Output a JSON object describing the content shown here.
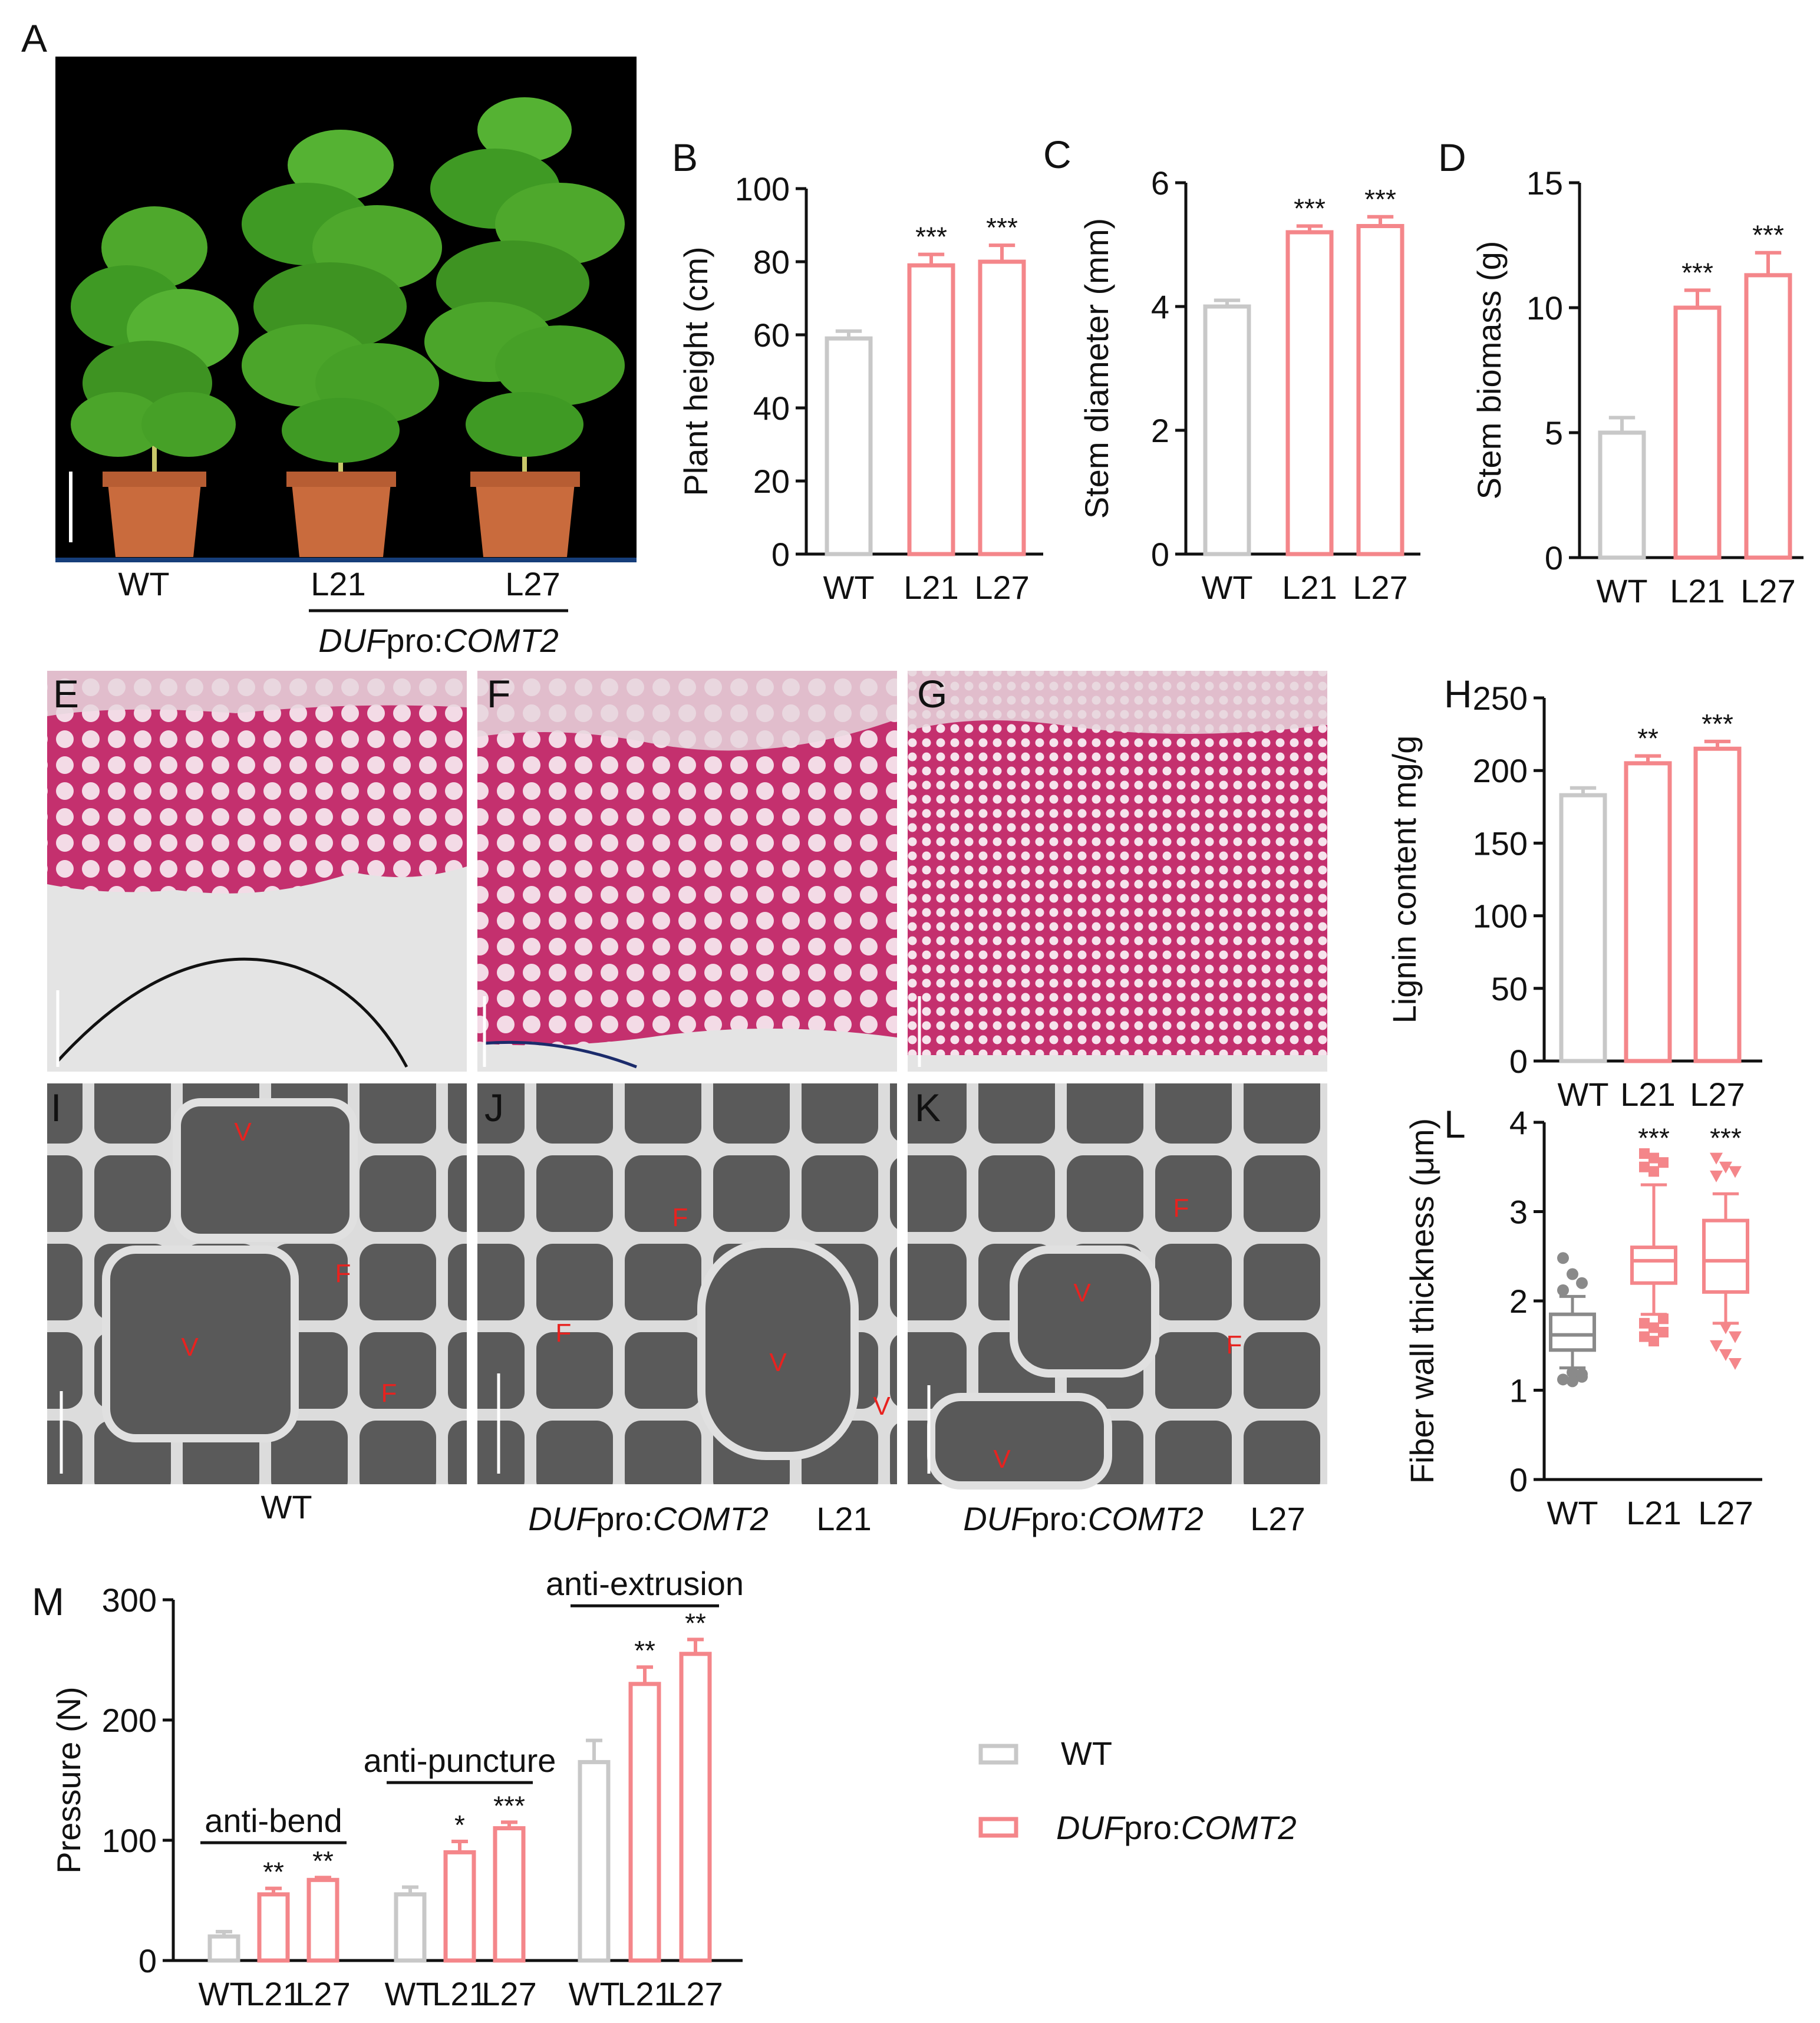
{
  "panel_letters": [
    "A",
    "B",
    "C",
    "D",
    "E",
    "F",
    "G",
    "H",
    "I",
    "J",
    "K",
    "L",
    "M"
  ],
  "colors": {
    "wt": "#c8c8c8",
    "duf": "#f4868a",
    "stain": "#c4306e",
    "sem": "#5d5d5d",
    "black": "#000000"
  },
  "panel_a": {
    "labels": [
      "WT",
      "L21",
      "L27"
    ],
    "construct_italic": "DUF",
    "construct_mid": "pro:",
    "construct_italic2": "COMT2"
  },
  "panels_ijk": {
    "captions": [
      "WT",
      "L21",
      "L27"
    ],
    "markers_i": [
      "V",
      "F",
      "V",
      "F"
    ],
    "markers_j": [
      "F",
      "F",
      "V",
      "V"
    ],
    "markers_k": [
      "F",
      "V",
      "F",
      "V"
    ]
  },
  "chart_data": [
    {
      "panel": "B",
      "type": "bar",
      "categories": [
        "WT",
        "L21",
        "L27"
      ],
      "values": [
        59,
        79,
        80
      ],
      "errors": [
        2,
        3,
        4.5
      ],
      "significance": [
        "",
        "***",
        "***"
      ],
      "ylabel": "Plant height (cm)",
      "ylim": [
        0,
        100
      ],
      "yticks": [
        0,
        20,
        40,
        60,
        80,
        100
      ]
    },
    {
      "panel": "C",
      "type": "bar",
      "categories": [
        "WT",
        "L21",
        "L27"
      ],
      "values": [
        4.0,
        5.2,
        5.3
      ],
      "errors": [
        0.1,
        0.1,
        0.15
      ],
      "significance": [
        "",
        "***",
        "***"
      ],
      "ylabel": "Stem diameter (mm)",
      "ylim": [
        0,
        6
      ],
      "yticks": [
        0,
        2,
        4,
        6
      ]
    },
    {
      "panel": "D",
      "type": "bar",
      "categories": [
        "WT",
        "L21",
        "L27"
      ],
      "values": [
        5.0,
        10.0,
        11.3
      ],
      "errors": [
        0.6,
        0.7,
        0.9
      ],
      "significance": [
        "",
        "***",
        "***"
      ],
      "ylabel": "Stem biomass (g)",
      "ylim": [
        0,
        15
      ],
      "yticks": [
        0,
        5,
        10,
        15
      ]
    },
    {
      "panel": "H",
      "type": "bar",
      "categories": [
        "WT",
        "L21",
        "L27"
      ],
      "values": [
        183,
        205,
        215
      ],
      "errors": [
        5,
        5,
        5
      ],
      "significance": [
        "",
        "**",
        "***"
      ],
      "ylabel": "Lignin content mg/g",
      "ylim": [
        0,
        250
      ],
      "yticks": [
        0,
        50,
        100,
        150,
        200,
        250
      ]
    },
    {
      "panel": "L",
      "type": "boxplot",
      "categories": [
        "WT",
        "L21",
        "L27"
      ],
      "boxes": [
        {
          "q1": 1.45,
          "median": 1.62,
          "q3": 1.85,
          "low": 1.25,
          "high": 2.05
        },
        {
          "q1": 2.2,
          "median": 2.45,
          "q3": 2.6,
          "low": 1.85,
          "high": 3.3
        },
        {
          "q1": 2.1,
          "median": 2.45,
          "q3": 2.9,
          "low": 1.75,
          "high": 3.2
        }
      ],
      "outliers": [
        [
          2.48,
          2.3,
          2.2,
          2.12,
          1.2,
          1.15,
          1.12,
          1.1,
          1.18
        ],
        [
          3.65,
          3.6,
          3.55,
          3.5,
          3.45,
          1.8,
          1.75,
          1.7,
          1.65,
          1.6,
          1.55
        ],
        [
          3.6,
          3.5,
          3.45,
          3.4,
          1.7,
          1.6,
          1.5,
          1.4,
          1.3
        ]
      ],
      "significance": [
        "",
        "***",
        "***"
      ],
      "ylabel": "Fiber wall thickness (μm)",
      "ylim": [
        0,
        4
      ],
      "yticks": [
        0,
        1,
        2,
        3,
        4
      ]
    },
    {
      "panel": "M",
      "type": "bar",
      "groups": [
        "anti-bend",
        "anti-puncture",
        "anti-extrusion"
      ],
      "categories": [
        "WT",
        "L21",
        "L27",
        "WT",
        "L21",
        "L27",
        "WT",
        "L21",
        "L27"
      ],
      "values": [
        20,
        55,
        67,
        55,
        90,
        110,
        165,
        230,
        255
      ],
      "errors": [
        4,
        5,
        2,
        6,
        9,
        5,
        18,
        14,
        12
      ],
      "significance": [
        "",
        "**",
        "**",
        "",
        "*",
        "***",
        "",
        "**",
        "**"
      ],
      "ylabel": "Pressure (N)",
      "ylim": [
        0,
        300
      ],
      "yticks": [
        0,
        100,
        200,
        300
      ],
      "legend": [
        {
          "name": "WT",
          "name_italic": "",
          "name_plain": ""
        },
        {
          "name": "",
          "name_italic": "DUF",
          "name_plain": "pro:",
          "name_italic2": "COMT2"
        }
      ]
    }
  ]
}
